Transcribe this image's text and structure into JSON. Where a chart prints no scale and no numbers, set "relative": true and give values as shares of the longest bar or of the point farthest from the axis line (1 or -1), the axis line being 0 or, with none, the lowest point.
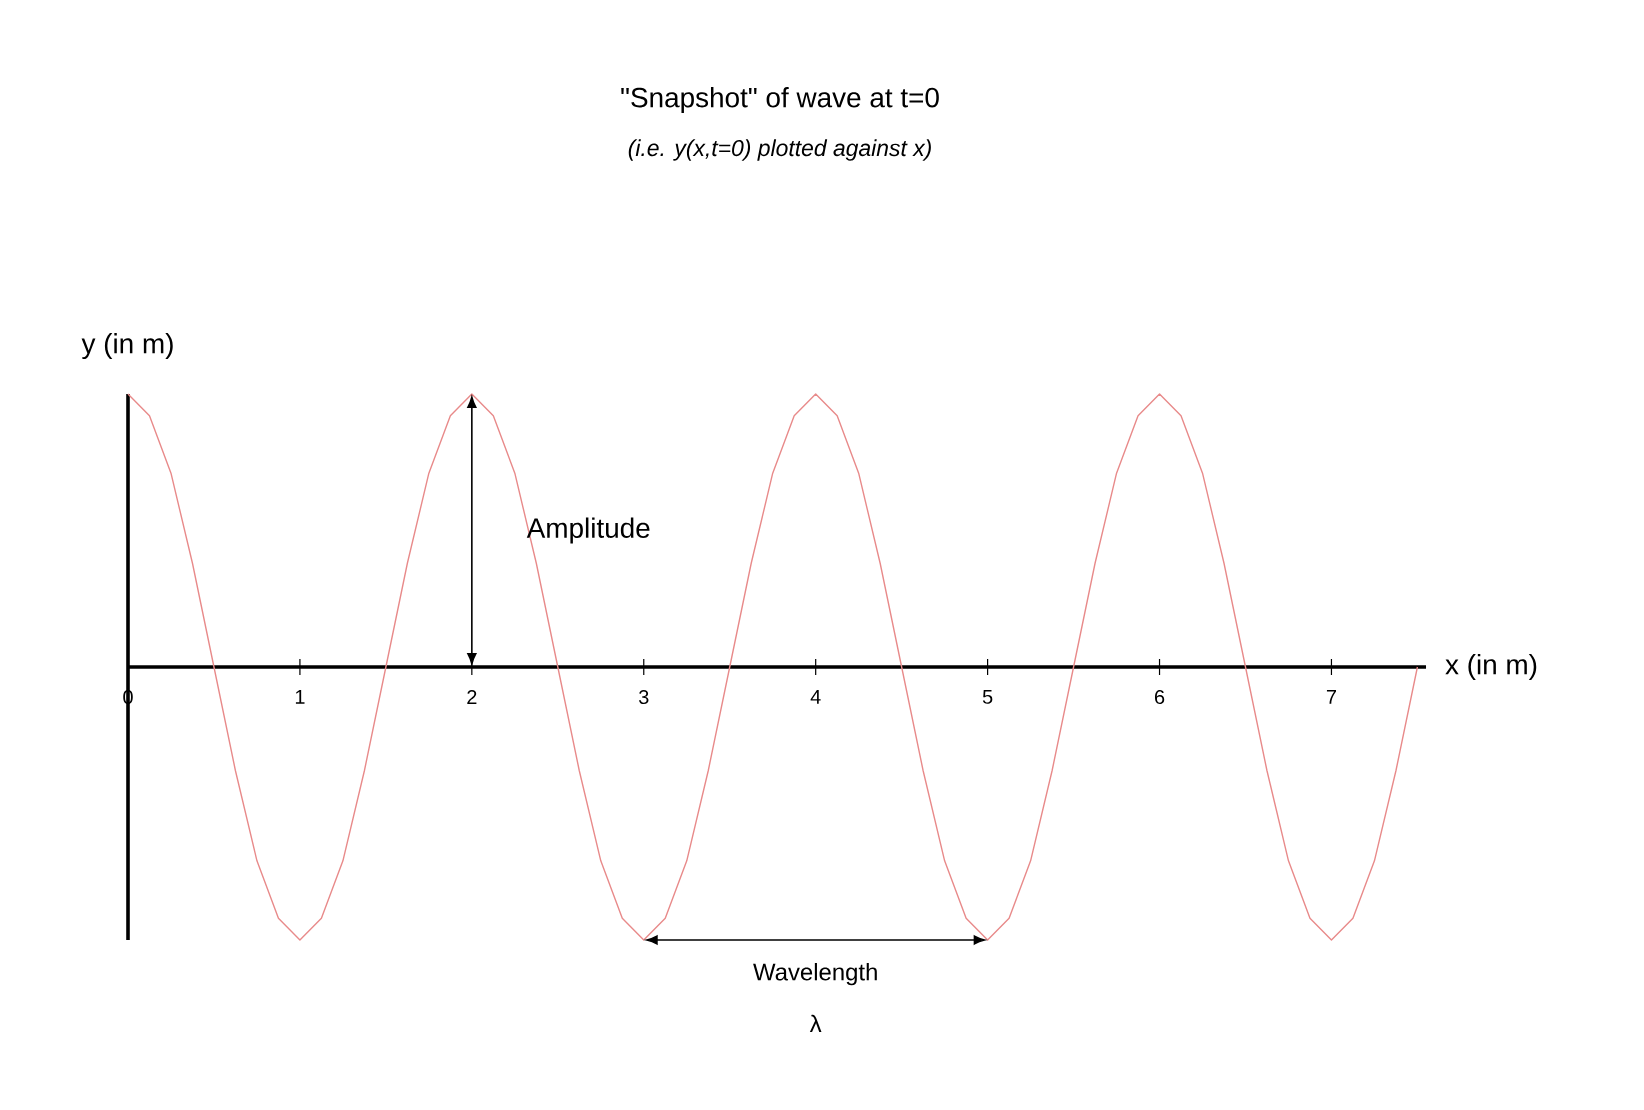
{
  "chart_data": {
    "type": "line",
    "title": "\"Snapshot\" of wave at t=0",
    "subtitle": "(i.e. y(x,t=0) plotted against x)",
    "xlabel": "x (in m)",
    "ylabel": "y (in m)",
    "relative": true,
    "marker": "none",
    "xlim": [
      0,
      7.55
    ],
    "xticks": [
      0,
      1,
      2,
      3,
      4,
      5,
      6,
      7
    ],
    "x": [
      0,
      0.125,
      0.25,
      0.375,
      0.5,
      0.625,
      0.75,
      0.875,
      1,
      1.125,
      1.25,
      1.375,
      1.5,
      1.625,
      1.75,
      1.875,
      2,
      2.125,
      2.25,
      2.375,
      2.5,
      2.625,
      2.75,
      2.875,
      3,
      3.125,
      3.25,
      3.375,
      3.5,
      3.625,
      3.75,
      3.875,
      4,
      4.125,
      4.25,
      4.375,
      4.5,
      4.625,
      4.75,
      4.875,
      5,
      5.125,
      5.25,
      5.375,
      5.5,
      5.625,
      5.75,
      5.875,
      6,
      6.125,
      6.25,
      6.375,
      6.5,
      6.625,
      6.75,
      6.875,
      7,
      7.125,
      7.25,
      7.375,
      7.5
    ],
    "series": [
      {
        "color": "#e88a8a",
        "values": [
          1,
          0.92,
          0.71,
          0.38,
          0,
          -0.38,
          -0.71,
          -0.92,
          -1,
          -0.92,
          -0.71,
          -0.38,
          0,
          0.38,
          0.71,
          0.92,
          1,
          0.92,
          0.71,
          0.38,
          0,
          -0.38,
          -0.71,
          -0.92,
          -1,
          -0.92,
          -0.71,
          -0.38,
          0,
          0.38,
          0.71,
          0.92,
          1,
          0.92,
          0.71,
          0.38,
          0,
          -0.38,
          -0.71,
          -0.92,
          -1,
          -0.92,
          -0.71,
          -0.38,
          0,
          0.38,
          0.71,
          0.92,
          1,
          0.92,
          0.71,
          0.38,
          0,
          -0.38,
          -0.71,
          -0.92,
          -1,
          -0.92,
          -0.71,
          -0.38,
          0
        ]
      }
    ],
    "annotations": [
      "Amplitude",
      "Wavelength",
      "λ"
    ]
  }
}
